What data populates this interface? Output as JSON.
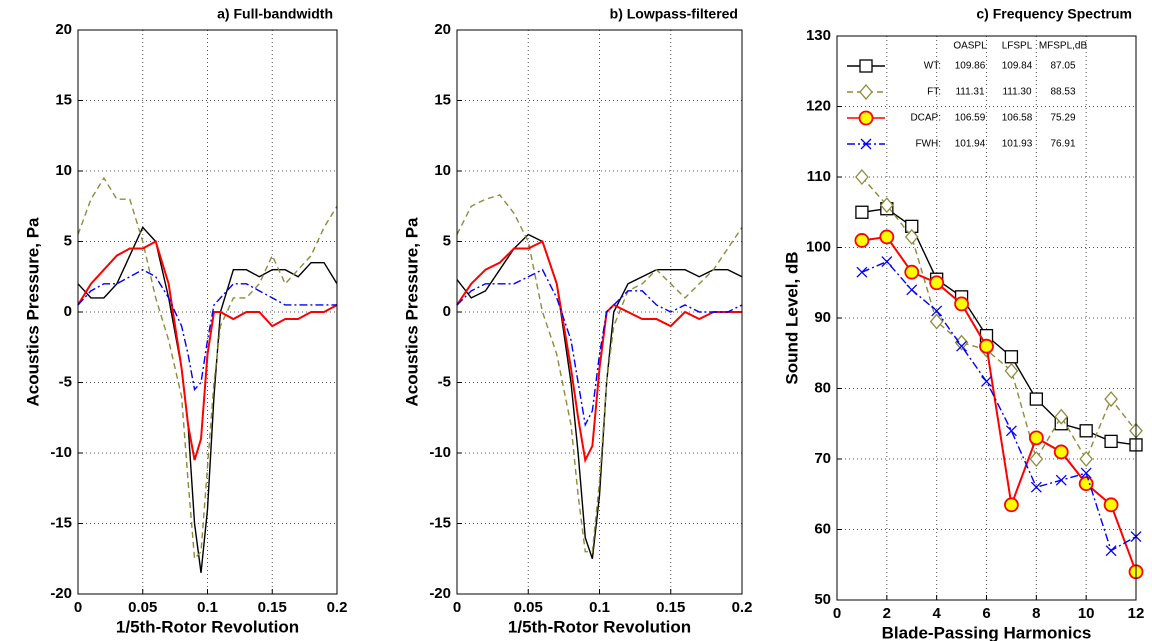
{
  "chart_data": [
    {
      "type": "line",
      "title": "a) Full-bandwidth",
      "xlabel": "1/5th-Rotor Revolution",
      "ylabel": "Acoustics Pressure, Pa",
      "x": [
        0,
        0.01,
        0.02,
        0.03,
        0.04,
        0.05,
        0.06,
        0.07,
        0.08,
        0.085,
        0.09,
        0.095,
        0.1,
        0.105,
        0.11,
        0.12,
        0.13,
        0.14,
        0.15,
        0.16,
        0.17,
        0.18,
        0.19,
        0.2
      ],
      "xlim": [
        0,
        0.2
      ],
      "xticks": [
        0,
        0.05,
        0.1,
        0.15,
        0.2
      ],
      "ylim": [
        -20,
        20
      ],
      "yticks": [
        -20,
        -15,
        -10,
        -5,
        0,
        5,
        10,
        15,
        20
      ],
      "grid": true,
      "series": [
        {
          "color": "#000000",
          "dash": "solid",
          "values": [
            2,
            1,
            1,
            2,
            4,
            6,
            5,
            1,
            -4,
            -8,
            -15,
            -18.5,
            -14,
            -6,
            0,
            3,
            3,
            2.5,
            3,
            3,
            2.5,
            3.5,
            3.5,
            2
          ]
        },
        {
          "color": "#8c8c3c",
          "dash": "dashed",
          "values": [
            5.5,
            8,
            9.5,
            8,
            8,
            5,
            1,
            -2,
            -6,
            -12,
            -17.5,
            -17,
            -11,
            -5,
            -1,
            1,
            1,
            2,
            4,
            2,
            3,
            4,
            6,
            7.5
          ]
        },
        {
          "color": "#ff0000",
          "dash": "solid",
          "values": [
            0.5,
            2,
            3,
            4,
            4.5,
            4.5,
            5,
            2,
            -4,
            -8,
            -10.5,
            -9,
            -3,
            0,
            0,
            -0.5,
            0,
            0,
            -1,
            -0.5,
            -0.5,
            0,
            0,
            0.5
          ]
        },
        {
          "color": "#0000ff",
          "dash": "dashdot",
          "values": [
            0.5,
            1.5,
            2,
            2,
            2.5,
            3,
            2.5,
            1,
            -1,
            -3,
            -5.5,
            -5,
            -2,
            0.5,
            1,
            2,
            2,
            1.5,
            1,
            0.5,
            0.5,
            0.5,
            0.5,
            0.5
          ]
        }
      ]
    },
    {
      "type": "line",
      "title": "b) Lowpass-filtered",
      "xlabel": "1/5th-Rotor Revolution",
      "ylabel": "Acoustics Pressure, Pa",
      "x": [
        0,
        0.01,
        0.02,
        0.03,
        0.04,
        0.05,
        0.06,
        0.07,
        0.08,
        0.085,
        0.09,
        0.095,
        0.1,
        0.105,
        0.11,
        0.12,
        0.13,
        0.14,
        0.15,
        0.16,
        0.17,
        0.18,
        0.19,
        0.2
      ],
      "xlim": [
        0,
        0.2
      ],
      "xticks": [
        0,
        0.05,
        0.1,
        0.15,
        0.2
      ],
      "ylim": [
        -20,
        20
      ],
      "yticks": [
        -20,
        -15,
        -10,
        -5,
        0,
        5,
        10,
        15,
        20
      ],
      "grid": true,
      "series": [
        {
          "color": "#000000",
          "dash": "solid",
          "values": [
            2.3,
            1,
            1.5,
            3,
            4.5,
            5.5,
            5,
            2,
            -5,
            -10,
            -16,
            -17.5,
            -13,
            -5,
            0,
            2,
            2.5,
            3,
            3,
            3,
            2.5,
            3,
            3,
            2.5
          ]
        },
        {
          "color": "#8c8c3c",
          "dash": "dashed",
          "values": [
            5.5,
            7.5,
            8,
            8.3,
            7,
            5,
            0,
            -3,
            -8,
            -13,
            -17,
            -17,
            -12,
            -5,
            -1,
            1.5,
            2,
            3,
            2,
            1,
            2,
            3,
            4.5,
            6
          ]
        },
        {
          "color": "#ff0000",
          "dash": "solid",
          "values": [
            0.5,
            2,
            3,
            3.5,
            4.5,
            4.5,
            5,
            2,
            -4,
            -7.5,
            -10.5,
            -9.5,
            -4,
            0,
            0.5,
            0,
            -0.5,
            -0.5,
            -1,
            0,
            -0.5,
            0,
            0,
            0
          ]
        },
        {
          "color": "#0000ff",
          "dash": "dashdot",
          "values": [
            0.5,
            1.5,
            2,
            2,
            2,
            2.5,
            3,
            1,
            -2,
            -5,
            -8,
            -7,
            -3,
            0,
            0.5,
            1.5,
            1.5,
            0.5,
            0,
            0.5,
            0,
            0,
            0,
            0.5
          ]
        }
      ]
    },
    {
      "type": "line",
      "title": "c) Frequency Spectrum",
      "xlabel": "Blade-Passing Harmonics",
      "ylabel": "Sound Level, dB",
      "x": [
        1,
        2,
        3,
        4,
        5,
        6,
        7,
        8,
        9,
        10,
        11,
        12
      ],
      "xlim": [
        0,
        12
      ],
      "xticks": [
        0,
        2,
        4,
        6,
        8,
        10,
        12
      ],
      "ylim": [
        50,
        130
      ],
      "yticks": [
        50,
        60,
        70,
        80,
        90,
        100,
        110,
        120,
        130
      ],
      "grid": true,
      "legend": "upper left",
      "series": [
        {
          "name": "WT:",
          "color": "#000000",
          "dash": "solid",
          "marker": "square",
          "marker_fill": "#ffffff",
          "values": [
            105,
            105.5,
            103,
            95.5,
            93,
            87.5,
            84.5,
            78.5,
            75,
            74,
            72.5,
            72
          ]
        },
        {
          "name": "FT:",
          "color": "#8c8c3c",
          "dash": "dashed",
          "marker": "diamond",
          "marker_fill": "#ffffff",
          "values": [
            110,
            106,
            101.5,
            89.5,
            86.5,
            85.5,
            82.5,
            70,
            76,
            70,
            78.5,
            74
          ]
        },
        {
          "name": "DCAP:",
          "color": "#ff0000",
          "dash": "solid",
          "marker": "circle",
          "marker_fill": "#ffff00",
          "values": [
            101,
            101.5,
            96.5,
            95,
            92,
            86,
            63.5,
            73,
            71,
            66.5,
            63.5,
            54
          ]
        },
        {
          "name": "FWH:",
          "color": "#0000ff",
          "dash": "dashdot",
          "marker": "x",
          "marker_fill": "#ffffff",
          "values": [
            96.5,
            98,
            94,
            91,
            86,
            81,
            74,
            66,
            67,
            68,
            57,
            59
          ]
        }
      ],
      "table": {
        "columns": [
          "OASPL",
          "LFSPL",
          "MFSPL,dB"
        ],
        "rows": [
          [
            "109.86",
            "109.84",
            "87.05"
          ],
          [
            "111.31",
            "111.30",
            "88.53"
          ],
          [
            "106.59",
            "106.58",
            "75.29"
          ],
          [
            "101.94",
            "101.93",
            "76.91"
          ]
        ]
      }
    }
  ]
}
